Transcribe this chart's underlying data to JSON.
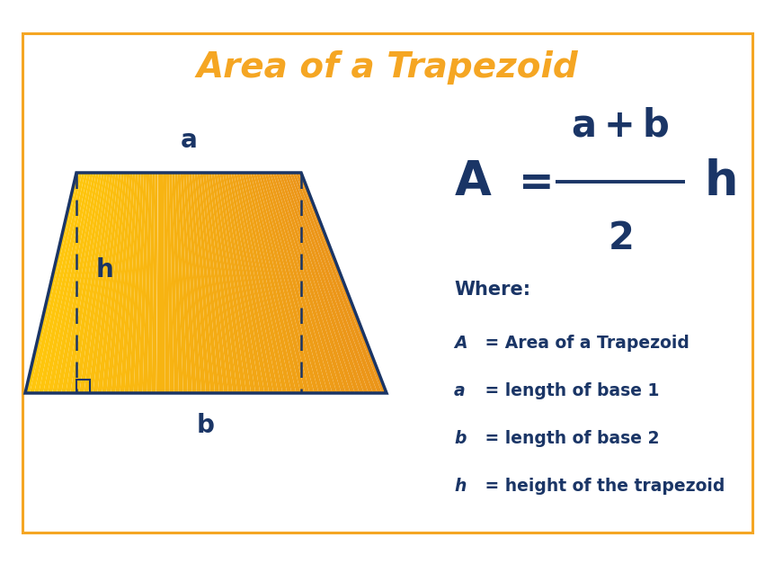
{
  "title": "Area of a Trapezoid",
  "title_color": "#F5A623",
  "title_fontsize": 28,
  "border_color": "#F5A623",
  "background_color": "#ffffff",
  "trapezoid_fill": "#F5A623",
  "trapezoid_edge_color": "#1a3566",
  "dark_blue": "#1a3566",
  "label_a": "a",
  "label_b": "b",
  "label_h": "h",
  "where_text": "Where:",
  "def_A_italic": "A",
  "def_A_rest": " = Area of a Trapezoid",
  "def_a_italic": "a",
  "def_a_rest": " = length of base 1",
  "def_b_italic": "b",
  "def_b_rest": " = length of base 2",
  "def_h_italic": "h",
  "def_h_rest": " = height of the trapezoid",
  "figsize": [
    8.62,
    6.47
  ],
  "dpi": 100
}
